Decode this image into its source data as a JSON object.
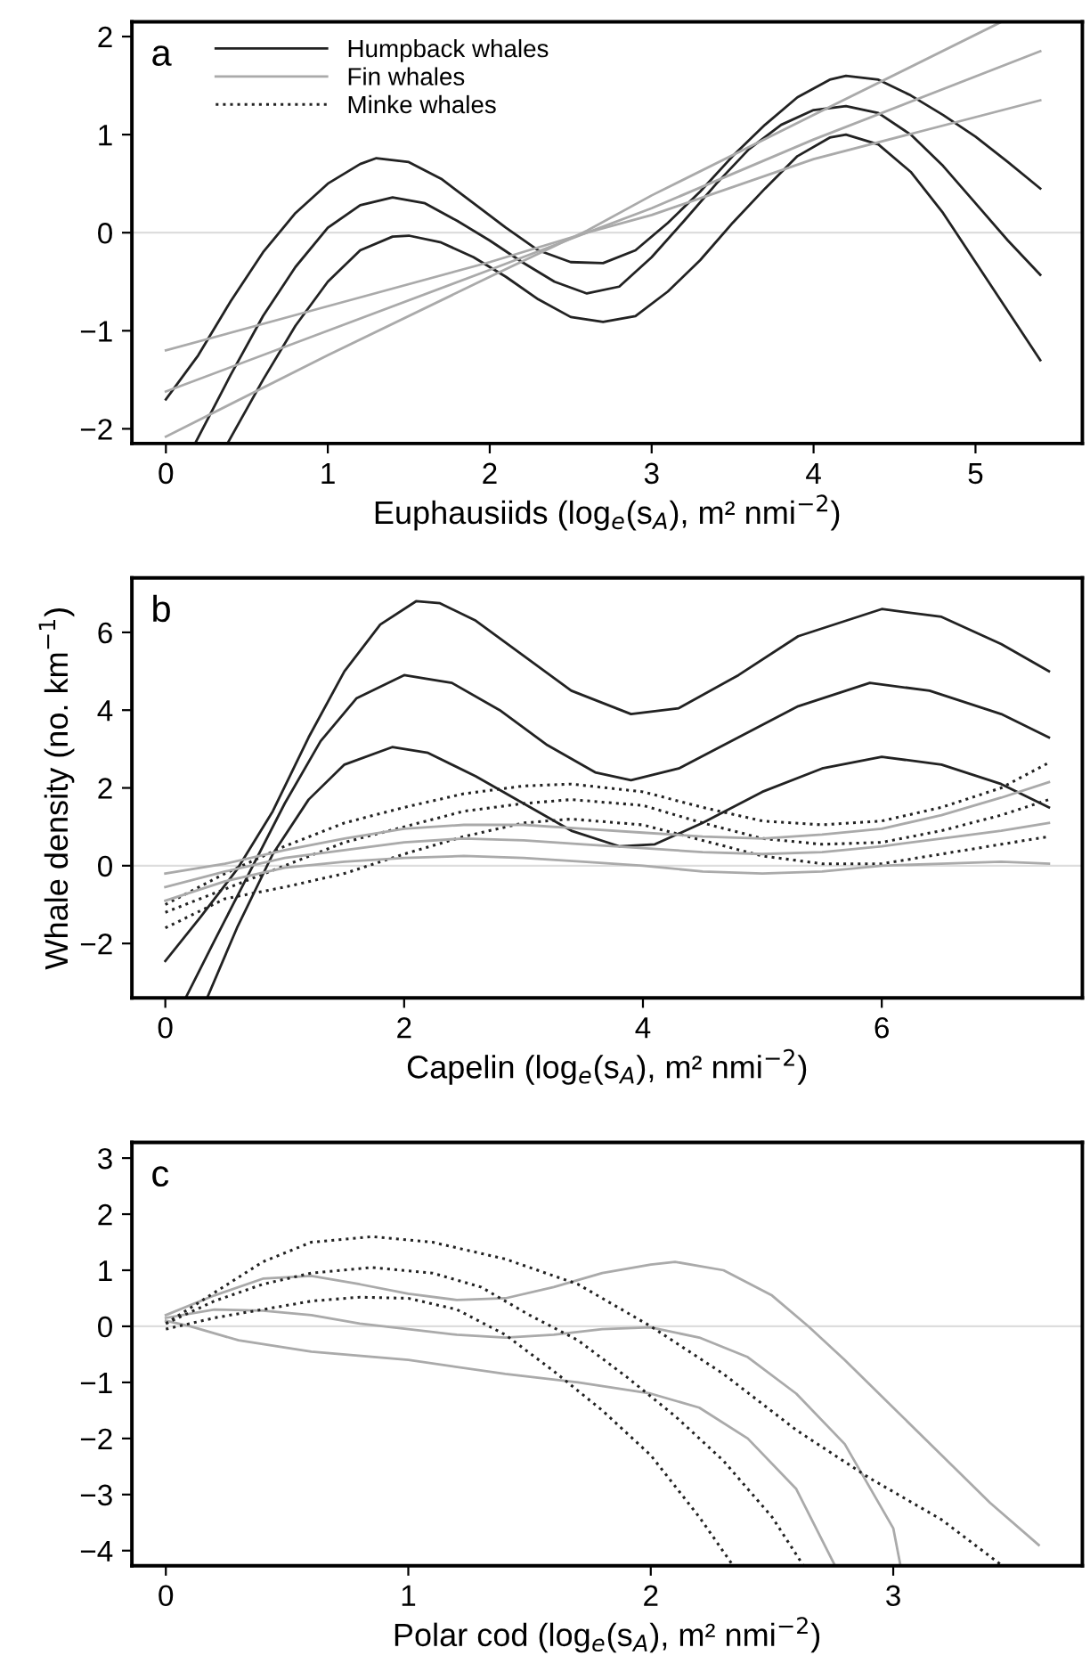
{
  "chart_data": [
    {
      "type": "line",
      "title": "a",
      "xlabel": "Euphausiids (log$_{e}$(s$_{A}$), m² nmi$^{−2}$)",
      "xlim": [
        -0.21,
        5.66
      ],
      "ylim": [
        -2.15,
        2.15
      ],
      "xticks": [
        0,
        1,
        2,
        3,
        4,
        5
      ],
      "yticks": [
        -2,
        -1,
        0,
        1,
        2
      ],
      "grid": false,
      "legend": "top left",
      "ref_lines": [
        {
          "axis": "y",
          "value": 0,
          "color": "#dddddd"
        }
      ],
      "series": [
        {
          "name": "Humpback whales",
          "color": "#222222",
          "line_style": "solid",
          "x": [
            0.18,
            0.4,
            0.6,
            0.8,
            1.0,
            1.2,
            1.4,
            1.6,
            1.8,
            2.0,
            2.2,
            2.4,
            2.6,
            2.8,
            3.0,
            3.2,
            3.4,
            3.6,
            3.8,
            4.0,
            4.2,
            4.4,
            4.6,
            4.8,
            5.0,
            5.2,
            5.4
          ],
          "values": [
            -2.15,
            -1.45,
            -0.85,
            -0.35,
            0.05,
            0.28,
            0.36,
            0.3,
            0.12,
            -0.08,
            -0.3,
            -0.5,
            -0.62,
            -0.55,
            -0.25,
            0.12,
            0.5,
            0.85,
            1.1,
            1.25,
            1.29,
            1.22,
            1.0,
            0.68,
            0.3,
            -0.08,
            -0.43
          ]
        },
        {
          "color": "#222222",
          "line_style": "solid",
          "x": [
            0,
            0.2,
            0.4,
            0.6,
            0.8,
            1.0,
            1.2,
            1.3,
            1.5,
            1.7,
            1.9,
            2.1,
            2.3,
            2.5,
            2.7,
            2.9,
            3.1,
            3.3,
            3.5,
            3.7,
            3.9,
            4.1,
            4.2,
            4.4,
            4.6,
            4.8,
            5.0,
            5.2,
            5.4
          ],
          "values": [
            -1.7,
            -1.25,
            -0.7,
            -0.2,
            0.2,
            0.5,
            0.7,
            0.76,
            0.72,
            0.55,
            0.3,
            0.05,
            -0.18,
            -0.3,
            -0.31,
            -0.18,
            0.1,
            0.42,
            0.78,
            1.1,
            1.38,
            1.56,
            1.6,
            1.56,
            1.4,
            1.2,
            0.98,
            0.72,
            0.45
          ]
        },
        {
          "color": "#222222",
          "line_style": "solid",
          "x": [
            0.38,
            0.6,
            0.8,
            1.0,
            1.2,
            1.4,
            1.5,
            1.7,
            1.9,
            2.1,
            2.3,
            2.5,
            2.7,
            2.9,
            3.1,
            3.3,
            3.5,
            3.7,
            3.9,
            4.1,
            4.2,
            4.4,
            4.6,
            4.8,
            5.0,
            5.2,
            5.4
          ],
          "values": [
            -2.15,
            -1.5,
            -0.95,
            -0.5,
            -0.18,
            -0.04,
            -0.03,
            -0.1,
            -0.25,
            -0.45,
            -0.68,
            -0.86,
            -0.91,
            -0.85,
            -0.6,
            -0.28,
            0.1,
            0.45,
            0.78,
            0.97,
            1.0,
            0.9,
            0.62,
            0.2,
            -0.3,
            -0.8,
            -1.3
          ]
        },
        {
          "name": "Fin whales",
          "color": "#aaaaaa",
          "line_style": "solid",
          "x": [
            0,
            1,
            2,
            2.6,
            3,
            4,
            5.4
          ],
          "values": [
            -1.62,
            -1.0,
            -0.38,
            0.0,
            0.25,
            0.95,
            1.85
          ]
        },
        {
          "color": "#aaaaaa",
          "line_style": "solid",
          "x": [
            0,
            1,
            2,
            2.6,
            3,
            4,
            5.4
          ],
          "values": [
            -1.2,
            -0.75,
            -0.3,
            0.0,
            0.18,
            0.75,
            1.35
          ]
        },
        {
          "color": "#aaaaaa",
          "line_style": "solid",
          "x": [
            0,
            1,
            2,
            2.6,
            3,
            4,
            5.16
          ],
          "values": [
            -2.08,
            -1.25,
            -0.45,
            0.02,
            0.38,
            1.2,
            2.15
          ]
        },
        {
          "name": "Minke whales",
          "color": "#222222",
          "line_style": "dotted"
        }
      ]
    },
    {
      "type": "line",
      "title": "b",
      "xlabel": "Capelin (log$_{e}$(s$_{A}$), m² nmi$^{−2}$)",
      "ylabel": "Whale density (no. km$^{−1}$)",
      "xlim": [
        -0.28,
        7.68
      ],
      "ylim": [
        -3.4,
        7.4
      ],
      "xticks": [
        0,
        2,
        4,
        6
      ],
      "yticks": [
        -2,
        0,
        2,
        4,
        6
      ],
      "grid": false,
      "ref_lines": [
        {
          "axis": "y",
          "value": 0,
          "color": "#dddddd"
        }
      ],
      "series": [
        {
          "color": "#222222",
          "line_style": "solid",
          "x": [
            0,
            0.3,
            0.6,
            0.9,
            1.2,
            1.5,
            1.8,
            2.1,
            2.3,
            2.6,
            3.0,
            3.4,
            3.9,
            4.3,
            4.8,
            5.3,
            6.0,
            6.5,
            7.0,
            7.4
          ],
          "values": [
            -2.45,
            -1.3,
            -0.1,
            1.4,
            3.3,
            5.0,
            6.2,
            6.8,
            6.75,
            6.3,
            5.4,
            4.5,
            3.9,
            4.05,
            4.9,
            5.9,
            6.6,
            6.4,
            5.7,
            5.0
          ]
        },
        {
          "color": "#222222",
          "line_style": "solid",
          "x": [
            0.17,
            0.4,
            0.7,
            1.0,
            1.3,
            1.6,
            2.0,
            2.4,
            2.8,
            3.2,
            3.6,
            3.9,
            4.3,
            4.8,
            5.3,
            5.9,
            6.4,
            7.0,
            7.4
          ],
          "values": [
            -3.4,
            -2.0,
            -0.2,
            1.6,
            3.2,
            4.3,
            4.9,
            4.7,
            4.0,
            3.1,
            2.4,
            2.2,
            2.5,
            3.3,
            4.1,
            4.7,
            4.5,
            3.9,
            3.3
          ]
        },
        {
          "color": "#222222",
          "line_style": "solid",
          "x": [
            0.35,
            0.6,
            0.9,
            1.2,
            1.5,
            1.9,
            2.2,
            2.6,
            3.0,
            3.4,
            3.8,
            4.1,
            4.5,
            5.0,
            5.5,
            6.0,
            6.5,
            7.0,
            7.4
          ],
          "values": [
            -3.4,
            -1.6,
            0.3,
            1.7,
            2.6,
            3.05,
            2.9,
            2.3,
            1.6,
            0.9,
            0.5,
            0.55,
            1.1,
            1.9,
            2.5,
            2.8,
            2.6,
            2.1,
            1.5
          ]
        },
        {
          "color": "#222222",
          "line_style": "dotted",
          "x": [
            0,
            0.5,
            1,
            1.5,
            2.0,
            2.5,
            3.0,
            3.4,
            4.0,
            4.5,
            5.0,
            5.5,
            6.0,
            6.5,
            7.0,
            7.4
          ],
          "values": [
            -1.0,
            -0.2,
            0.5,
            1.1,
            1.5,
            1.85,
            2.05,
            2.1,
            1.9,
            1.5,
            1.15,
            1.05,
            1.15,
            1.5,
            2.0,
            2.65
          ]
        },
        {
          "color": "#222222",
          "line_style": "dotted",
          "x": [
            0,
            0.5,
            1,
            1.5,
            2.0,
            2.5,
            3.0,
            3.4,
            4.0,
            4.5,
            5.0,
            5.5,
            6.0,
            6.5,
            7.0,
            7.4
          ],
          "values": [
            -1.2,
            -0.6,
            0.0,
            0.6,
            1.0,
            1.4,
            1.6,
            1.7,
            1.55,
            1.1,
            0.7,
            0.55,
            0.6,
            0.9,
            1.3,
            1.7
          ]
        },
        {
          "color": "#222222",
          "line_style": "dotted",
          "x": [
            0,
            0.5,
            1,
            1.5,
            2.0,
            2.5,
            3.0,
            3.4,
            4.0,
            4.5,
            5.0,
            5.5,
            6.0,
            6.5,
            7.0,
            7.4
          ],
          "values": [
            -1.6,
            -0.85,
            -0.55,
            -0.2,
            0.3,
            0.75,
            1.1,
            1.2,
            1.05,
            0.65,
            0.25,
            0.05,
            0.05,
            0.3,
            0.55,
            0.75
          ]
        },
        {
          "color": "#aaaaaa",
          "line_style": "solid",
          "x": [
            0,
            0.5,
            1,
            1.5,
            2,
            2.5,
            3,
            3.5,
            4,
            4.5,
            5,
            5.5,
            6,
            6.5,
            7,
            7.4
          ],
          "values": [
            -0.2,
            0.05,
            0.4,
            0.7,
            0.95,
            1.05,
            1.05,
            0.95,
            0.85,
            0.75,
            0.7,
            0.8,
            0.95,
            1.3,
            1.75,
            2.15
          ]
        },
        {
          "color": "#aaaaaa",
          "line_style": "solid",
          "x": [
            0,
            0.5,
            1,
            1.5,
            2,
            2.5,
            3,
            3.5,
            4,
            4.5,
            5,
            5.5,
            6,
            6.5,
            7,
            7.4
          ],
          "values": [
            -0.55,
            -0.15,
            0.2,
            0.4,
            0.6,
            0.7,
            0.65,
            0.55,
            0.45,
            0.35,
            0.3,
            0.35,
            0.5,
            0.7,
            0.9,
            1.1
          ]
        },
        {
          "color": "#aaaaaa",
          "line_style": "solid",
          "x": [
            0,
            0.5,
            1,
            1.5,
            2,
            2.5,
            3,
            3.5,
            4,
            4.5,
            5,
            5.5,
            6,
            6.5,
            7,
            7.4
          ],
          "values": [
            -0.9,
            -0.4,
            -0.05,
            0.1,
            0.2,
            0.25,
            0.2,
            0.1,
            0.0,
            -0.15,
            -0.2,
            -0.15,
            0.0,
            0.05,
            0.1,
            0.05
          ]
        }
      ]
    },
    {
      "type": "line",
      "title": "c",
      "xlabel": "Polar cod (log$_{e}$(s$_{A}$), m² nmi$^{−2}$)",
      "xlim": [
        -0.14,
        3.78
      ],
      "ylim": [
        -4.27,
        3.28
      ],
      "xticks": [
        0,
        1,
        2,
        3
      ],
      "yticks": [
        -4,
        -3,
        -2,
        -1,
        0,
        1,
        2,
        3
      ],
      "grid": false,
      "ref_lines": [
        {
          "axis": "y",
          "value": 0,
          "color": "#dddddd"
        }
      ],
      "series": [
        {
          "color": "#aaaaaa",
          "line_style": "solid",
          "x": [
            0,
            0.2,
            0.4,
            0.6,
            0.8,
            1.0,
            1.2,
            1.4,
            1.6,
            1.8,
            2.0,
            2.1,
            2.3,
            2.5,
            2.65,
            2.8,
            3.0,
            3.2,
            3.4,
            3.6
          ],
          "values": [
            0.2,
            0.55,
            0.85,
            0.9,
            0.75,
            0.58,
            0.47,
            0.5,
            0.7,
            0.95,
            1.1,
            1.15,
            1.0,
            0.55,
            0.0,
            -0.6,
            -1.45,
            -2.3,
            -3.15,
            -3.9
          ]
        },
        {
          "color": "#aaaaaa",
          "line_style": "solid",
          "x": [
            0,
            0.2,
            0.4,
            0.6,
            0.8,
            1.0,
            1.2,
            1.4,
            1.6,
            1.8,
            2.0,
            2.2,
            2.4,
            2.6,
            2.8,
            3.0,
            3.03
          ],
          "values": [
            0.15,
            0.3,
            0.28,
            0.2,
            0.05,
            -0.05,
            -0.15,
            -0.2,
            -0.15,
            -0.05,
            -0.02,
            -0.2,
            -0.55,
            -1.2,
            -2.1,
            -3.6,
            -4.27
          ]
        },
        {
          "color": "#aaaaaa",
          "line_style": "solid",
          "x": [
            0,
            0.1,
            0.3,
            0.6,
            1.0,
            1.4,
            1.7,
            2.0,
            2.2,
            2.4,
            2.6,
            2.76
          ],
          "values": [
            0.1,
            0.0,
            -0.25,
            -0.45,
            -0.6,
            -0.85,
            -1.0,
            -1.2,
            -1.45,
            -2.0,
            -2.9,
            -4.27
          ]
        },
        {
          "color": "#222222",
          "line_style": "dotted",
          "x": [
            0,
            0.2,
            0.4,
            0.6,
            0.85,
            1.1,
            1.4,
            1.7,
            2.0,
            2.3,
            2.6,
            2.9,
            3.2,
            3.45
          ],
          "values": [
            0.05,
            0.6,
            1.15,
            1.5,
            1.6,
            1.5,
            1.2,
            0.75,
            0.0,
            -0.85,
            -1.85,
            -2.7,
            -3.45,
            -4.27
          ]
        },
        {
          "color": "#222222",
          "line_style": "dotted",
          "x": [
            0,
            0.2,
            0.4,
            0.6,
            0.85,
            1.1,
            1.3,
            1.5,
            1.7,
            1.9,
            2.1,
            2.3,
            2.5,
            2.63
          ],
          "values": [
            0.05,
            0.45,
            0.75,
            0.95,
            1.05,
            0.95,
            0.7,
            0.2,
            -0.25,
            -0.9,
            -1.6,
            -2.4,
            -3.4,
            -4.27
          ]
        },
        {
          "color": "#222222",
          "line_style": "dotted",
          "x": [
            0,
            0.2,
            0.4,
            0.6,
            0.8,
            1.0,
            1.2,
            1.4,
            1.6,
            1.8,
            2.0,
            2.2,
            2.34
          ],
          "values": [
            -0.05,
            0.15,
            0.3,
            0.45,
            0.52,
            0.5,
            0.3,
            -0.15,
            -0.8,
            -1.5,
            -2.3,
            -3.4,
            -4.27
          ]
        }
      ]
    }
  ]
}
